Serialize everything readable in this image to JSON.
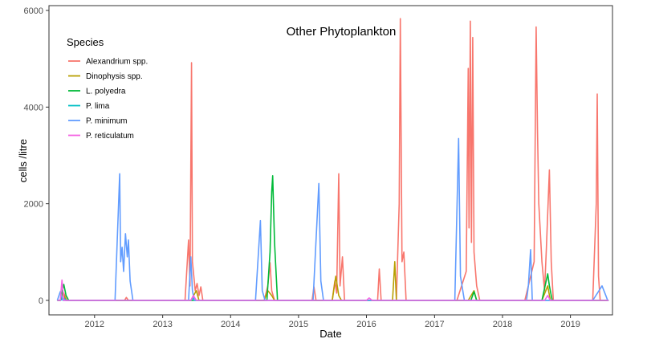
{
  "chart_data": {
    "type": "line",
    "title": "Other Phytoplankton",
    "xlabel": "Date",
    "ylabel": "cells /litre",
    "x_ticks": [
      "2012",
      "2013",
      "2014",
      "2015",
      "2016",
      "2017",
      "2018",
      "2019"
    ],
    "y_ticks": [
      "0",
      "2000",
      "4000",
      "6000"
    ],
    "xlim": [
      "2011-05-01",
      "2019-08-15"
    ],
    "ylim": [
      -300,
      6100
    ],
    "grid": false,
    "legend": {
      "title": "Species",
      "placement": "top-left inside"
    },
    "series": [
      {
        "name": "Alexandrium spp.",
        "color": "#F8766D",
        "points": [
          [
            "2011-07-01",
            0
          ],
          [
            "2011-07-20",
            150
          ],
          [
            "2011-08-05",
            0
          ],
          [
            "2012-06-10",
            0
          ],
          [
            "2012-06-20",
            60
          ],
          [
            "2012-07-01",
            0
          ],
          [
            "2013-05-01",
            0
          ],
          [
            "2013-05-20",
            1250
          ],
          [
            "2013-05-28",
            300
          ],
          [
            "2013-06-05",
            4920
          ],
          [
            "2013-06-10",
            800
          ],
          [
            "2013-06-25",
            200
          ],
          [
            "2013-07-05",
            350
          ],
          [
            "2013-07-15",
            100
          ],
          [
            "2013-07-25",
            280
          ],
          [
            "2013-08-05",
            0
          ],
          [
            "2014-07-01",
            0
          ],
          [
            "2014-07-20",
            300
          ],
          [
            "2014-08-01",
            780
          ],
          [
            "2014-08-10",
            200
          ],
          [
            "2014-08-25",
            0
          ],
          [
            "2015-03-15",
            0
          ],
          [
            "2015-03-25",
            280
          ],
          [
            "2015-04-05",
            0
          ],
          [
            "2015-07-01",
            0
          ],
          [
            "2015-07-15",
            400
          ],
          [
            "2015-07-25",
            150
          ],
          [
            "2015-08-05",
            2620
          ],
          [
            "2015-08-12",
            300
          ],
          [
            "2015-08-25",
            900
          ],
          [
            "2015-09-05",
            0
          ],
          [
            "2016-03-01",
            0
          ],
          [
            "2016-03-10",
            650
          ],
          [
            "2016-03-20",
            0
          ],
          [
            "2016-06-10",
            0
          ],
          [
            "2016-06-25",
            2000
          ],
          [
            "2016-07-01",
            5830
          ],
          [
            "2016-07-10",
            800
          ],
          [
            "2016-07-20",
            1000
          ],
          [
            "2016-08-01",
            0
          ],
          [
            "2017-05-01",
            0
          ],
          [
            "2017-06-20",
            600
          ],
          [
            "2017-07-01",
            4800
          ],
          [
            "2017-07-05",
            1500
          ],
          [
            "2017-07-12",
            5780
          ],
          [
            "2017-07-18",
            1200
          ],
          [
            "2017-07-25",
            5440
          ],
          [
            "2017-08-01",
            1000
          ],
          [
            "2017-08-15",
            300
          ],
          [
            "2017-09-01",
            0
          ],
          [
            "2018-05-01",
            0
          ],
          [
            "2018-06-20",
            800
          ],
          [
            "2018-07-01",
            5660
          ],
          [
            "2018-07-08",
            3500
          ],
          [
            "2018-07-15",
            2000
          ],
          [
            "2018-08-01",
            800
          ],
          [
            "2018-08-15",
            200
          ],
          [
            "2018-08-25",
            1100
          ],
          [
            "2018-09-10",
            2700
          ],
          [
            "2018-09-20",
            800
          ],
          [
            "2018-10-01",
            0
          ],
          [
            "2019-05-01",
            0
          ],
          [
            "2019-05-20",
            2000
          ],
          [
            "2019-05-25",
            4270
          ],
          [
            "2019-06-01",
            500
          ],
          [
            "2019-06-10",
            0
          ]
        ]
      },
      {
        "name": "Dinophysis spp.",
        "color": "#B79F00",
        "points": [
          [
            "2011-07-01",
            0
          ],
          [
            "2011-07-15",
            150
          ],
          [
            "2011-08-01",
            0
          ],
          [
            "2013-06-01",
            0
          ],
          [
            "2013-07-01",
            200
          ],
          [
            "2013-07-15",
            0
          ],
          [
            "2014-07-01",
            0
          ],
          [
            "2014-07-20",
            200
          ],
          [
            "2014-08-10",
            100
          ],
          [
            "2014-08-25",
            0
          ],
          [
            "2015-07-01",
            0
          ],
          [
            "2015-07-20",
            500
          ],
          [
            "2015-08-05",
            100
          ],
          [
            "2015-08-20",
            0
          ],
          [
            "2016-05-20",
            0
          ],
          [
            "2016-06-01",
            800
          ],
          [
            "2016-06-10",
            0
          ],
          [
            "2017-07-01",
            0
          ],
          [
            "2017-08-01",
            200
          ],
          [
            "2017-08-15",
            0
          ],
          [
            "2018-08-01",
            0
          ],
          [
            "2018-09-01",
            300
          ],
          [
            "2018-09-15",
            0
          ]
        ]
      },
      {
        "name": "L. polyedra",
        "color": "#00BA38",
        "points": [
          [
            "2011-07-01",
            0
          ],
          [
            "2011-07-20",
            330
          ],
          [
            "2011-08-01",
            100
          ],
          [
            "2011-08-15",
            0
          ],
          [
            "2014-07-15",
            0
          ],
          [
            "2014-08-01",
            1000
          ],
          [
            "2014-08-10",
            2250
          ],
          [
            "2014-08-15",
            2580
          ],
          [
            "2014-08-25",
            1200
          ],
          [
            "2014-09-10",
            0
          ],
          [
            "2017-07-15",
            0
          ],
          [
            "2017-08-01",
            180
          ],
          [
            "2017-08-15",
            0
          ],
          [
            "2018-08-01",
            0
          ],
          [
            "2018-09-01",
            550
          ],
          [
            "2018-09-10",
            300
          ],
          [
            "2018-09-25",
            0
          ]
        ]
      },
      {
        "name": "P. lima",
        "color": "#00BFC4",
        "points": [
          [
            "2011-07-01",
            0
          ],
          [
            "2011-07-20",
            50
          ],
          [
            "2011-08-01",
            0
          ],
          [
            "2013-06-01",
            0
          ],
          [
            "2013-06-10",
            50
          ],
          [
            "2013-06-20",
            0
          ]
        ]
      },
      {
        "name": "P. minimum",
        "color": "#619CFF",
        "points": [
          [
            "2011-06-15",
            0
          ],
          [
            "2011-07-01",
            180
          ],
          [
            "2011-07-15",
            0
          ],
          [
            "2012-04-20",
            0
          ],
          [
            "2012-05-15",
            2620
          ],
          [
            "2012-05-20",
            800
          ],
          [
            "2012-05-28",
            1100
          ],
          [
            "2012-06-05",
            600
          ],
          [
            "2012-06-15",
            1380
          ],
          [
            "2012-06-25",
            900
          ],
          [
            "2012-07-01",
            1250
          ],
          [
            "2012-07-10",
            400
          ],
          [
            "2012-07-25",
            0
          ],
          [
            "2013-05-20",
            0
          ],
          [
            "2013-06-01",
            900
          ],
          [
            "2013-06-10",
            200
          ],
          [
            "2013-06-20",
            0
          ],
          [
            "2014-05-15",
            0
          ],
          [
            "2014-06-10",
            1650
          ],
          [
            "2014-06-20",
            200
          ],
          [
            "2014-07-05",
            0
          ],
          [
            "2015-03-20",
            0
          ],
          [
            "2015-04-20",
            2420
          ],
          [
            "2015-05-01",
            400
          ],
          [
            "2015-05-15",
            0
          ],
          [
            "2017-04-20",
            0
          ],
          [
            "2017-05-10",
            3350
          ],
          [
            "2017-05-20",
            500
          ],
          [
            "2017-06-10",
            0
          ],
          [
            "2018-05-10",
            0
          ],
          [
            "2018-05-20",
            300
          ],
          [
            "2018-06-01",
            1050
          ],
          [
            "2018-06-10",
            0
          ],
          [
            "2019-05-01",
            0
          ],
          [
            "2019-06-20",
            300
          ],
          [
            "2019-07-10",
            100
          ],
          [
            "2019-07-20",
            0
          ]
        ]
      },
      {
        "name": "P. reticulatum",
        "color": "#F564E3",
        "points": [
          [
            "2011-07-01",
            0
          ],
          [
            "2011-07-10",
            420
          ],
          [
            "2011-07-20",
            0
          ],
          [
            "2013-06-01",
            0
          ],
          [
            "2013-06-15",
            100
          ],
          [
            "2013-07-01",
            0
          ],
          [
            "2016-01-01",
            0
          ],
          [
            "2016-01-15",
            50
          ],
          [
            "2016-02-01",
            0
          ],
          [
            "2018-08-15",
            0
          ],
          [
            "2018-09-01",
            100
          ],
          [
            "2018-09-15",
            0
          ]
        ]
      }
    ]
  }
}
